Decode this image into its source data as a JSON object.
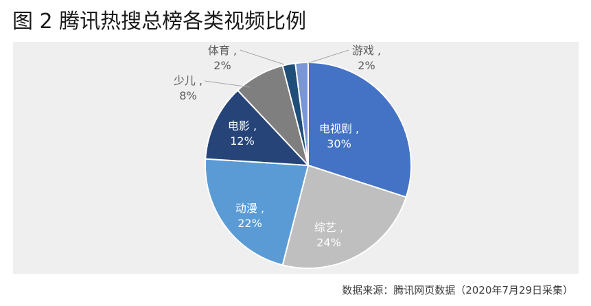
{
  "figure_title": "图 2 腾讯热搜总榜各类视频比例",
  "source_note": "数据来源：腾讯网页数据（2020年7月29日采集）",
  "chart_data": {
    "type": "pie",
    "title": "",
    "slices": [
      {
        "label": "电视剧",
        "value": 30,
        "display": "30%",
        "color": "#4472c4",
        "text_color": "#ffffff",
        "label_style": "inside"
      },
      {
        "label": "综艺",
        "value": 24,
        "display": "24%",
        "color": "#bfbfbf",
        "text_color": "#ffffff",
        "label_style": "inside"
      },
      {
        "label": "动漫",
        "value": 22,
        "display": "22%",
        "color": "#5b9bd5",
        "text_color": "#ffffff",
        "label_style": "inside"
      },
      {
        "label": "电影",
        "value": 12,
        "display": "12%",
        "color": "#264478",
        "text_color": "#ffffff",
        "label_style": "inside"
      },
      {
        "label": "少儿",
        "value": 8,
        "display": "8%",
        "color": "#7f7f7f",
        "text_color": "#595959",
        "label_style": "leader"
      },
      {
        "label": "体育",
        "value": 2,
        "display": "2%",
        "color": "#1f4e79",
        "text_color": "#595959",
        "label_style": "leader"
      },
      {
        "label": "游戏",
        "value": 2,
        "display": "2%",
        "color": "#7b96d4",
        "text_color": "#595959",
        "label_style": "leader"
      }
    ],
    "start_angle_deg": 0,
    "direction": "clockwise",
    "label_separator": " ,"
  }
}
